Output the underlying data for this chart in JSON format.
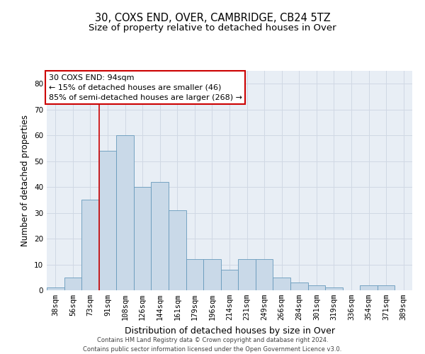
{
  "title": "30, COXS END, OVER, CAMBRIDGE, CB24 5TZ",
  "subtitle": "Size of property relative to detached houses in Over",
  "xlabel": "Distribution of detached houses by size in Over",
  "ylabel": "Number of detached properties",
  "categories": [
    "38sqm",
    "56sqm",
    "73sqm",
    "91sqm",
    "108sqm",
    "126sqm",
    "144sqm",
    "161sqm",
    "179sqm",
    "196sqm",
    "214sqm",
    "231sqm",
    "249sqm",
    "266sqm",
    "284sqm",
    "301sqm",
    "319sqm",
    "336sqm",
    "354sqm",
    "371sqm",
    "389sqm"
  ],
  "values": [
    1,
    5,
    35,
    54,
    60,
    40,
    42,
    31,
    12,
    12,
    8,
    12,
    12,
    5,
    3,
    2,
    1,
    0,
    2,
    2,
    0
  ],
  "bar_color": "#c9d9e8",
  "bar_edge_color": "#6699bb",
  "red_line_x": 2.5,
  "ylim": [
    0,
    85
  ],
  "yticks": [
    0,
    10,
    20,
    30,
    40,
    50,
    60,
    70,
    80
  ],
  "annotation_line1": "30 COXS END: 94sqm",
  "annotation_line2": "← 15% of detached houses are smaller (46)",
  "annotation_line3": "85% of semi-detached houses are larger (268) →",
  "annotation_box_color": "#ffffff",
  "annotation_box_edge_color": "#cc0000",
  "grid_color": "#d0d8e4",
  "background_color": "#e8eef5",
  "footer_line1": "Contains HM Land Registry data © Crown copyright and database right 2024.",
  "footer_line2": "Contains public sector information licensed under the Open Government Licence v3.0.",
  "title_fontsize": 10.5,
  "subtitle_fontsize": 9.5,
  "xlabel_fontsize": 9,
  "ylabel_fontsize": 8.5,
  "tick_fontsize": 7.5,
  "annotation_fontsize": 8,
  "footer_fontsize": 6
}
